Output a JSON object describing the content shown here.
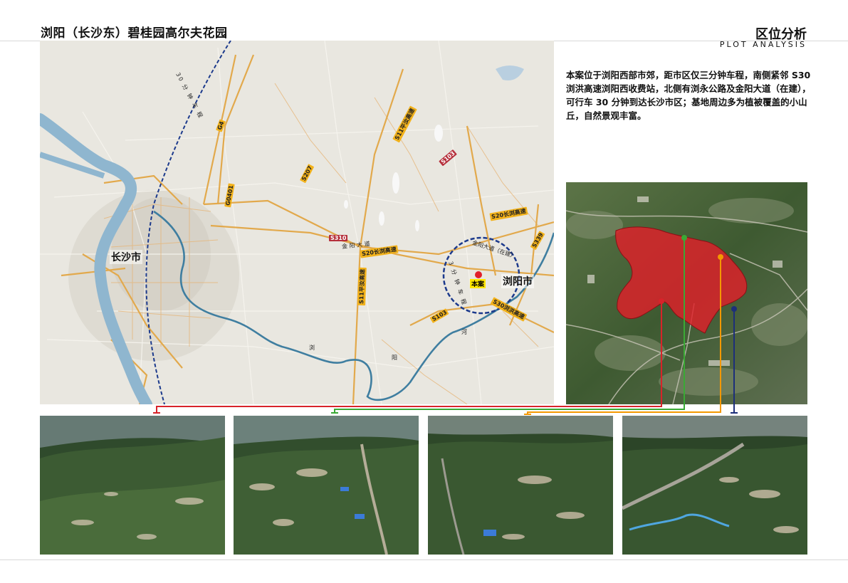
{
  "header": {
    "project_title": "浏阳（长沙东）碧桂园高尔夫花园",
    "section_title": "区位分析",
    "section_subtitle": "PLOT ANALYSIS"
  },
  "description": "本案位于浏阳西部市郊，距市区仅三分钟车程，南侧紧邻 S30 浏洪高速浏阳西收费站，北侧有浏永公路及金阳大道（在建），可行车 30 分钟到达长沙市区；基地周边多为植被覆盖的小山丘，自然景观丰富。",
  "map": {
    "cities": {
      "changsha": "长沙市",
      "liuyang": "浏阳市"
    },
    "site_label": "本案",
    "road_tags": {
      "s11_north": "S11平汝高速",
      "s103_north": "S103",
      "s207": "S207",
      "g4": "G4",
      "g0401": "G0401",
      "s310": "S310",
      "s20_east": "S20长浏高速",
      "s20_mid": "S20长浏高速",
      "s11_south": "S11平汝高速",
      "s30": "S30浏洪高速",
      "s103_south": "S103",
      "s339": "S339"
    },
    "road_names": {
      "jinyang_west": "金 阳 大 道",
      "jinyang_site": "金阳大道（在建）",
      "proposed_rail": "30 分 钟 车 程",
      "circle_text": "3 分 钟 车 程"
    },
    "river_chars": {
      "a": "浏",
      "b": "阳",
      "c": "河"
    }
  },
  "colors": {
    "site_red": "#e0202a",
    "link_red": "#d8232a",
    "link_green": "#3aa935",
    "link_orange": "#f39800",
    "link_navy": "#1d2f7a",
    "river": "#3f7ea0",
    "dashed_circle": "#1c3a8c",
    "expressway": "#e2a94c",
    "highway_tag": "#f2b21b"
  },
  "aerial_photos": [
    {
      "id": "photo-1",
      "link_color": "red"
    },
    {
      "id": "photo-2",
      "link_color": "green"
    },
    {
      "id": "photo-3",
      "link_color": "orange"
    },
    {
      "id": "photo-4",
      "link_color": "navy"
    }
  ]
}
